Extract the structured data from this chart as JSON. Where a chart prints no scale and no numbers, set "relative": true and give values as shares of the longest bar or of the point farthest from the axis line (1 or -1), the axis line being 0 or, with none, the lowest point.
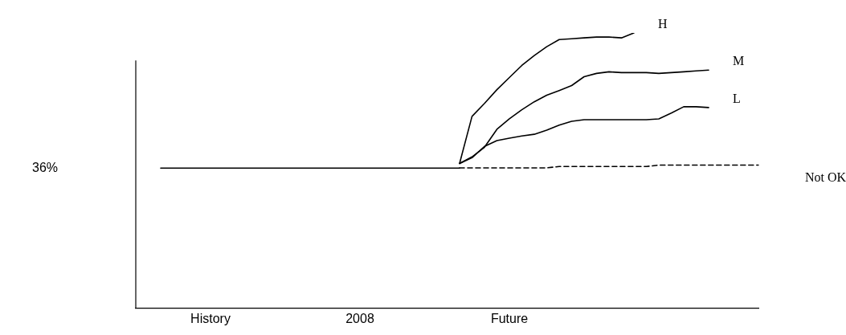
{
  "chart_data": {
    "type": "line",
    "relative": true,
    "legend": false,
    "grid": false,
    "marker": "none",
    "line_style": "solid",
    "categories": [
      null,
      null,
      null,
      null,
      null,
      null,
      "History",
      null,
      null,
      null,
      null,
      null,
      null,
      null,
      null,
      null,
      null,
      null,
      "2008",
      null,
      null,
      null,
      null,
      null,
      null,
      null,
      null,
      null,
      null,
      null,
      "Future",
      null,
      null,
      null,
      null,
      null,
      null,
      null,
      null,
      null,
      null,
      null,
      null,
      null,
      null,
      null,
      null,
      null,
      null,
      null,
      null
    ],
    "annotations": [
      "36%"
    ],
    "series": [
      {
        "color": "#000000",
        "values": [
          null,
          null,
          0.509,
          0.509,
          0.509,
          0.509,
          0.509,
          0.509,
          0.509,
          0.509,
          0.509,
          0.509,
          0.509,
          0.509,
          0.509,
          0.509,
          0.509,
          0.509,
          0.509,
          0.509,
          0.509,
          0.509,
          0.509,
          0.509,
          0.509,
          0.509,
          0.509,
          null,
          null,
          null,
          null,
          null,
          null,
          null,
          null,
          null,
          null,
          null,
          null,
          null,
          null,
          null,
          null,
          null,
          null,
          null,
          null,
          null,
          null,
          null,
          null
        ]
      },
      {
        "name": "H",
        "color": "#000000",
        "values": [
          null,
          null,
          null,
          null,
          null,
          null,
          null,
          null,
          null,
          null,
          null,
          null,
          null,
          null,
          null,
          null,
          null,
          null,
          null,
          null,
          null,
          null,
          null,
          null,
          null,
          null,
          0.526,
          0.697,
          0.744,
          0.794,
          0.838,
          0.882,
          0.918,
          0.95,
          0.976,
          0.979,
          0.982,
          0.985,
          0.985,
          0.982,
          1.0,
          null,
          null,
          null,
          null,
          null,
          null,
          null,
          null,
          null,
          null
        ]
      },
      {
        "name": "M",
        "color": "#000000",
        "values": [
          null,
          null,
          null,
          null,
          null,
          null,
          null,
          null,
          null,
          null,
          null,
          null,
          null,
          null,
          null,
          null,
          null,
          null,
          null,
          null,
          null,
          null,
          null,
          null,
          null,
          null,
          0.526,
          0.55,
          0.585,
          0.65,
          0.688,
          0.721,
          0.75,
          0.774,
          0.791,
          0.809,
          0.841,
          0.853,
          0.859,
          0.856,
          0.856,
          0.856,
          0.853,
          0.856,
          0.859,
          0.862,
          0.865,
          null,
          null,
          null,
          null
        ]
      },
      {
        "name": "L",
        "color": "#000000",
        "values": [
          null,
          null,
          null,
          null,
          null,
          null,
          null,
          null,
          null,
          null,
          null,
          null,
          null,
          null,
          null,
          null,
          null,
          null,
          null,
          null,
          null,
          null,
          null,
          null,
          null,
          null,
          0.526,
          0.547,
          0.588,
          0.609,
          0.618,
          0.626,
          0.632,
          0.647,
          0.665,
          0.679,
          0.685,
          0.685,
          0.685,
          0.685,
          0.685,
          0.685,
          0.688,
          0.709,
          0.732,
          0.732,
          0.729,
          null,
          null,
          null,
          null
        ]
      },
      {
        "name": "Not OK",
        "color": "#000000",
        "line_style": "dashed",
        "values": [
          null,
          null,
          null,
          null,
          null,
          null,
          null,
          null,
          null,
          null,
          null,
          null,
          null,
          null,
          null,
          null,
          null,
          null,
          null,
          null,
          null,
          null,
          null,
          null,
          null,
          null,
          0.51,
          0.51,
          0.51,
          0.51,
          0.51,
          0.51,
          0.51,
          0.51,
          0.515,
          0.515,
          0.515,
          0.515,
          0.515,
          0.515,
          0.515,
          0.515,
          0.52,
          0.52,
          0.52,
          0.52,
          0.52,
          0.52,
          0.52,
          0.52,
          0.52
        ]
      }
    ]
  }
}
